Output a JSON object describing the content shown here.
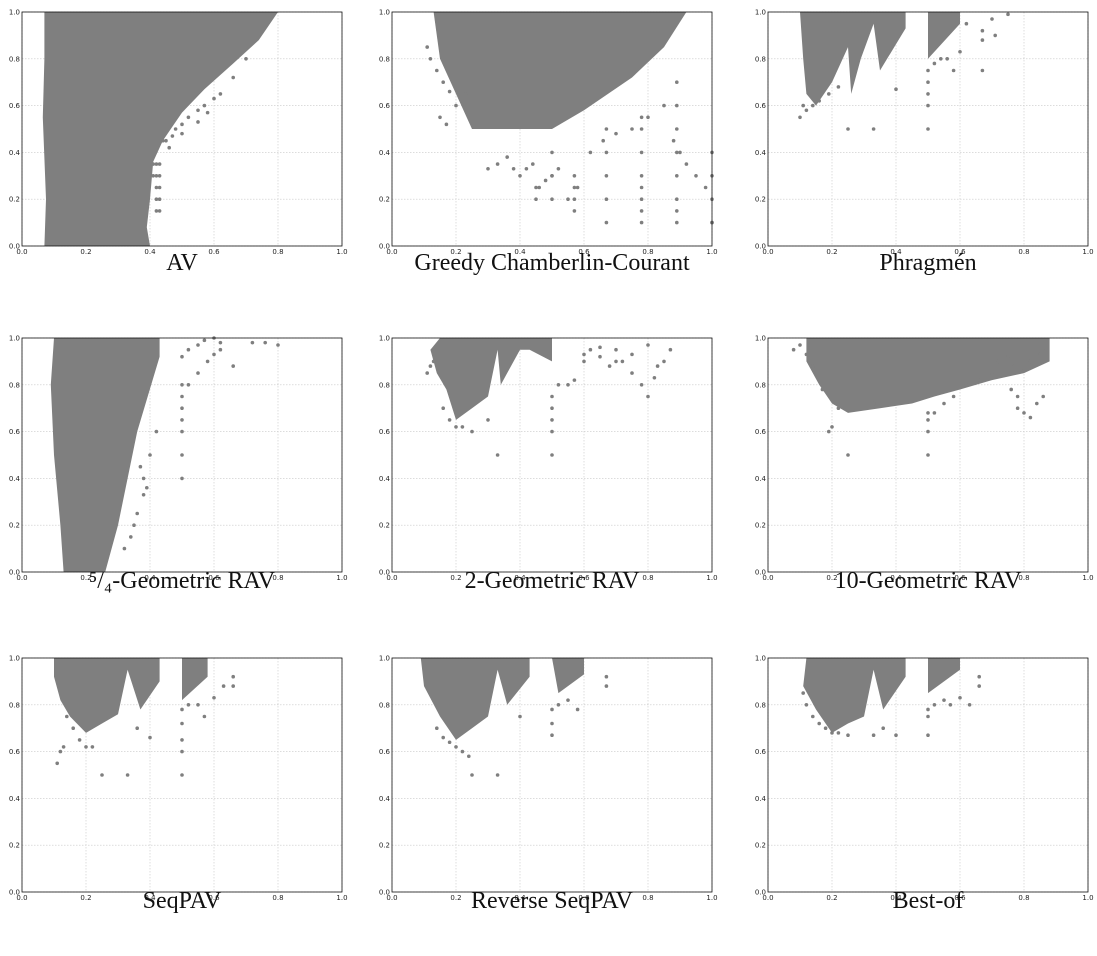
{
  "colors": {
    "marker": "#7f7f7f",
    "grid": "#c8c8c8",
    "axis": "#111111"
  },
  "tick_labels": [
    "0.0",
    "0.2",
    "0.4",
    "0.6",
    "0.8",
    "1.0"
  ],
  "chart_data": [
    {
      "type": "scatter",
      "caption": "AV",
      "xlim": [
        0,
        1
      ],
      "ylim": [
        0,
        1
      ],
      "grid": true,
      "mass": [
        [
          0.07,
          1.0
        ],
        [
          0.8,
          1.0
        ],
        [
          0.74,
          0.88
        ],
        [
          0.66,
          0.78
        ],
        [
          0.57,
          0.67
        ],
        [
          0.5,
          0.57
        ],
        [
          0.44,
          0.45
        ],
        [
          0.41,
          0.36
        ],
        [
          0.4,
          0.2
        ],
        [
          0.39,
          0.08
        ],
        [
          0.4,
          0.0
        ],
        [
          0.07,
          0.0
        ],
        [
          0.075,
          0.2
        ],
        [
          0.065,
          0.55
        ],
        [
          0.07,
          0.8
        ]
      ],
      "series": [
        {
          "x": [
            0.41,
            0.42,
            0.43,
            0.41,
            0.42,
            0.43,
            0.42,
            0.43,
            0.42,
            0.43,
            0.42,
            0.43,
            0.44,
            0.45,
            0.47,
            0.48,
            0.5,
            0.52,
            0.55,
            0.57,
            0.6,
            0.46,
            0.5,
            0.55,
            0.58,
            0.62,
            0.66,
            0.7
          ],
          "y": [
            0.35,
            0.35,
            0.35,
            0.3,
            0.3,
            0.3,
            0.25,
            0.25,
            0.2,
            0.2,
            0.15,
            0.15,
            0.45,
            0.45,
            0.47,
            0.5,
            0.52,
            0.55,
            0.58,
            0.6,
            0.63,
            0.42,
            0.48,
            0.53,
            0.57,
            0.65,
            0.72,
            0.8
          ]
        }
      ]
    },
    {
      "type": "scatter",
      "caption": "Greedy Chamberlin-Courant",
      "xlim": [
        0,
        1
      ],
      "ylim": [
        0,
        1
      ],
      "grid": true,
      "mass": [
        [
          0.13,
          1.0
        ],
        [
          0.92,
          1.0
        ],
        [
          0.85,
          0.85
        ],
        [
          0.75,
          0.72
        ],
        [
          0.6,
          0.58
        ],
        [
          0.5,
          0.5
        ],
        [
          0.25,
          0.5
        ],
        [
          0.2,
          0.65
        ],
        [
          0.15,
          0.8
        ]
      ],
      "series": [
        {
          "x": [
            0.11,
            0.12,
            0.14,
            0.16,
            0.18,
            0.15,
            0.17,
            0.2,
            0.23,
            0.3,
            0.33,
            0.36,
            0.38,
            0.4,
            0.42,
            0.44,
            0.46,
            0.48,
            0.5,
            0.52,
            0.55,
            0.58,
            0.62,
            0.66,
            0.7,
            0.75,
            0.8,
            0.85,
            0.88,
            0.9,
            0.92,
            0.95,
            0.98,
            1.0
          ],
          "y": [
            0.85,
            0.8,
            0.75,
            0.7,
            0.66,
            0.55,
            0.52,
            0.6,
            0.65,
            0.33,
            0.35,
            0.38,
            0.33,
            0.3,
            0.33,
            0.35,
            0.25,
            0.28,
            0.3,
            0.33,
            0.2,
            0.25,
            0.4,
            0.45,
            0.48,
            0.5,
            0.55,
            0.6,
            0.45,
            0.4,
            0.35,
            0.3,
            0.25,
            0.1
          ]
        },
        {
          "x": [
            0.78,
            0.78,
            0.78,
            0.78,
            0.78,
            0.78,
            0.78,
            0.78,
            0.89,
            0.89,
            0.89,
            0.89,
            0.89,
            0.89,
            0.89,
            0.89,
            1.0,
            1.0,
            1.0,
            1.0,
            0.57,
            0.57,
            0.57,
            0.57,
            0.5,
            0.5,
            0.5,
            0.45,
            0.45,
            0.67,
            0.67,
            0.67,
            0.67,
            0.67
          ],
          "y": [
            0.1,
            0.2,
            0.3,
            0.4,
            0.5,
            0.55,
            0.15,
            0.25,
            0.1,
            0.2,
            0.3,
            0.4,
            0.5,
            0.6,
            0.7,
            0.15,
            0.1,
            0.2,
            0.3,
            0.4,
            0.15,
            0.2,
            0.25,
            0.3,
            0.2,
            0.3,
            0.4,
            0.2,
            0.25,
            0.1,
            0.2,
            0.3,
            0.4,
            0.5
          ]
        }
      ]
    },
    {
      "type": "scatter",
      "caption": "Phragmén",
      "xlim": [
        0,
        1
      ],
      "ylim": [
        0,
        1
      ],
      "grid": true,
      "mass": [
        [
          0.1,
          1.0
        ],
        [
          0.6,
          1.0
        ],
        [
          0.6,
          0.95
        ],
        [
          0.5,
          0.8
        ],
        [
          0.5,
          1.0
        ],
        [
          0.43,
          1.0
        ],
        [
          0.43,
          0.93
        ],
        [
          0.35,
          0.75
        ],
        [
          0.33,
          0.95
        ],
        [
          0.29,
          0.8
        ],
        [
          0.26,
          0.65
        ],
        [
          0.25,
          0.85
        ],
        [
          0.2,
          0.7
        ],
        [
          0.15,
          0.6
        ],
        [
          0.12,
          0.65
        ],
        [
          0.11,
          0.8
        ]
      ],
      "series": [
        {
          "x": [
            0.1,
            0.11,
            0.12,
            0.14,
            0.16,
            0.19,
            0.22,
            0.25,
            0.33,
            0.4,
            0.5,
            0.5,
            0.5,
            0.5,
            0.5,
            0.52,
            0.54,
            0.56,
            0.58,
            0.6,
            0.67,
            0.67,
            0.67,
            0.71,
            0.75,
            0.7,
            0.62
          ],
          "y": [
            0.55,
            0.6,
            0.58,
            0.6,
            0.62,
            0.65,
            0.68,
            0.5,
            0.5,
            0.67,
            0.5,
            0.6,
            0.65,
            0.7,
            0.75,
            0.78,
            0.8,
            0.8,
            0.75,
            0.83,
            0.75,
            0.88,
            0.92,
            0.9,
            0.99,
            0.97,
            0.95
          ]
        }
      ]
    },
    {
      "type": "scatter",
      "caption": "⁵/₄-Geometric RAV",
      "xlim": [
        0,
        1
      ],
      "ylim": [
        0,
        1
      ],
      "grid": true,
      "mass": [
        [
          0.1,
          1.0
        ],
        [
          0.43,
          1.0
        ],
        [
          0.43,
          0.92
        ],
        [
          0.36,
          0.6
        ],
        [
          0.33,
          0.4
        ],
        [
          0.3,
          0.2
        ],
        [
          0.26,
          0.0
        ],
        [
          0.13,
          0.0
        ],
        [
          0.12,
          0.2
        ],
        [
          0.1,
          0.5
        ],
        [
          0.09,
          0.8
        ]
      ],
      "series": [
        {
          "x": [
            0.5,
            0.5,
            0.5,
            0.5,
            0.5,
            0.5,
            0.52,
            0.55,
            0.58,
            0.6,
            0.62,
            0.5,
            0.52,
            0.55,
            0.57,
            0.6,
            0.62,
            0.66,
            0.72,
            0.76,
            0.8,
            0.5,
            0.34,
            0.36,
            0.38,
            0.4,
            0.42,
            0.38,
            0.39,
            0.37,
            0.35,
            0.32
          ],
          "y": [
            0.6,
            0.65,
            0.7,
            0.75,
            0.8,
            0.4,
            0.8,
            0.85,
            0.9,
            0.93,
            0.98,
            0.92,
            0.95,
            0.97,
            0.99,
            1.0,
            0.95,
            0.88,
            0.98,
            0.98,
            0.97,
            0.5,
            0.15,
            0.25,
            0.4,
            0.5,
            0.6,
            0.33,
            0.36,
            0.45,
            0.2,
            0.1
          ]
        }
      ]
    },
    {
      "type": "scatter",
      "caption": "2-Geometric RAV",
      "xlim": [
        0,
        1
      ],
      "ylim": [
        0,
        1
      ],
      "grid": true,
      "mass": [
        [
          0.15,
          1.0
        ],
        [
          0.5,
          1.0
        ],
        [
          0.5,
          0.9
        ],
        [
          0.43,
          0.95
        ],
        [
          0.4,
          0.95
        ],
        [
          0.34,
          0.8
        ],
        [
          0.33,
          0.95
        ],
        [
          0.3,
          0.75
        ],
        [
          0.25,
          0.7
        ],
        [
          0.2,
          0.65
        ],
        [
          0.17,
          0.78
        ],
        [
          0.14,
          0.85
        ],
        [
          0.12,
          0.95
        ]
      ],
      "series": [
        {
          "x": [
            0.11,
            0.12,
            0.13,
            0.16,
            0.18,
            0.2,
            0.22,
            0.25,
            0.3,
            0.33,
            0.5,
            0.5,
            0.5,
            0.5,
            0.5,
            0.52,
            0.55,
            0.57,
            0.6,
            0.62,
            0.65,
            0.68,
            0.7,
            0.72,
            0.75,
            0.78,
            0.8,
            0.82,
            0.85,
            0.87,
            0.6,
            0.65,
            0.7,
            0.75,
            0.8,
            0.83
          ],
          "y": [
            0.85,
            0.88,
            0.9,
            0.7,
            0.65,
            0.62,
            0.62,
            0.6,
            0.65,
            0.5,
            0.5,
            0.6,
            0.65,
            0.7,
            0.75,
            0.8,
            0.8,
            0.82,
            0.9,
            0.95,
            0.92,
            0.88,
            0.95,
            0.9,
            0.85,
            0.8,
            0.75,
            0.83,
            0.9,
            0.95,
            0.93,
            0.96,
            0.9,
            0.93,
            0.97,
            0.88
          ]
        }
      ]
    },
    {
      "type": "scatter",
      "caption": "10-Geometric RAV",
      "xlim": [
        0,
        1
      ],
      "ylim": [
        0,
        1
      ],
      "grid": true,
      "mass": [
        [
          0.12,
          1.0
        ],
        [
          0.88,
          1.0
        ],
        [
          0.88,
          0.9
        ],
        [
          0.8,
          0.85
        ],
        [
          0.7,
          0.82
        ],
        [
          0.6,
          0.78
        ],
        [
          0.52,
          0.75
        ],
        [
          0.45,
          0.72
        ],
        [
          0.35,
          0.7
        ],
        [
          0.25,
          0.68
        ],
        [
          0.2,
          0.72
        ],
        [
          0.16,
          0.8
        ],
        [
          0.12,
          0.9
        ]
      ],
      "series": [
        {
          "x": [
            0.08,
            0.1,
            0.12,
            0.14,
            0.17,
            0.19,
            0.2,
            0.22,
            0.25,
            0.33,
            0.5,
            0.5,
            0.5,
            0.5,
            0.52,
            0.55,
            0.58,
            0.62,
            0.66,
            0.7,
            0.72,
            0.75,
            0.77,
            0.8,
            0.82,
            0.85,
            0.87,
            0.78,
            0.8,
            0.82,
            0.84,
            0.86,
            0.76,
            0.78
          ],
          "y": [
            0.95,
            0.97,
            0.93,
            0.88,
            0.78,
            0.6,
            0.62,
            0.7,
            0.5,
            0.72,
            0.5,
            0.6,
            0.65,
            0.68,
            0.68,
            0.72,
            0.75,
            0.8,
            0.82,
            0.85,
            0.9,
            0.92,
            0.88,
            0.86,
            0.9,
            0.93,
            0.95,
            0.7,
            0.68,
            0.66,
            0.72,
            0.75,
            0.78,
            0.75
          ]
        }
      ]
    },
    {
      "type": "scatter",
      "caption": "SeqPAV",
      "xlim": [
        0,
        1
      ],
      "ylim": [
        0,
        1
      ],
      "grid": true,
      "mass": [
        [
          0.1,
          1.0
        ],
        [
          0.58,
          1.0
        ],
        [
          0.58,
          0.92
        ],
        [
          0.5,
          0.82
        ],
        [
          0.5,
          1.0
        ],
        [
          0.43,
          1.0
        ],
        [
          0.43,
          0.9
        ],
        [
          0.37,
          0.78
        ],
        [
          0.33,
          0.95
        ],
        [
          0.3,
          0.76
        ],
        [
          0.25,
          0.72
        ],
        [
          0.2,
          0.68
        ],
        [
          0.15,
          0.75
        ],
        [
          0.12,
          0.82
        ],
        [
          0.1,
          0.92
        ]
      ],
      "series": [
        {
          "x": [
            0.11,
            0.12,
            0.13,
            0.14,
            0.16,
            0.18,
            0.2,
            0.22,
            0.25,
            0.33,
            0.5,
            0.5,
            0.5,
            0.5,
            0.5,
            0.52,
            0.55,
            0.57,
            0.6,
            0.63,
            0.66,
            0.66,
            0.4,
            0.36
          ],
          "y": [
            0.55,
            0.6,
            0.62,
            0.75,
            0.7,
            0.65,
            0.62,
            0.62,
            0.5,
            0.5,
            0.5,
            0.6,
            0.65,
            0.72,
            0.78,
            0.8,
            0.8,
            0.75,
            0.83,
            0.88,
            0.92,
            0.88,
            0.66,
            0.7
          ]
        }
      ]
    },
    {
      "type": "scatter",
      "caption": "Reverse SeqPAV",
      "xlim": [
        0,
        1
      ],
      "ylim": [
        0,
        1
      ],
      "grid": true,
      "mass": [
        [
          0.09,
          1.0
        ],
        [
          0.6,
          1.0
        ],
        [
          0.6,
          0.93
        ],
        [
          0.52,
          0.85
        ],
        [
          0.5,
          1.0
        ],
        [
          0.43,
          1.0
        ],
        [
          0.43,
          0.92
        ],
        [
          0.36,
          0.8
        ],
        [
          0.33,
          0.95
        ],
        [
          0.3,
          0.75
        ],
        [
          0.25,
          0.7
        ],
        [
          0.2,
          0.65
        ],
        [
          0.15,
          0.75
        ],
        [
          0.1,
          0.88
        ]
      ],
      "series": [
        {
          "x": [
            0.14,
            0.16,
            0.18,
            0.2,
            0.22,
            0.24,
            0.25,
            0.33,
            0.5,
            0.5,
            0.5,
            0.52,
            0.55,
            0.58,
            0.67,
            0.67,
            0.4
          ],
          "y": [
            0.7,
            0.66,
            0.64,
            0.62,
            0.6,
            0.58,
            0.5,
            0.5,
            0.67,
            0.72,
            0.78,
            0.8,
            0.82,
            0.78,
            0.88,
            0.92,
            0.75
          ]
        }
      ]
    },
    {
      "type": "scatter",
      "caption": "Best-of",
      "xlim": [
        0,
        1
      ],
      "ylim": [
        0,
        1
      ],
      "grid": true,
      "mass": [
        [
          0.12,
          1.0
        ],
        [
          0.6,
          1.0
        ],
        [
          0.6,
          0.95
        ],
        [
          0.5,
          0.85
        ],
        [
          0.5,
          1.0
        ],
        [
          0.43,
          1.0
        ],
        [
          0.43,
          0.92
        ],
        [
          0.36,
          0.78
        ],
        [
          0.33,
          0.95
        ],
        [
          0.3,
          0.75
        ],
        [
          0.25,
          0.72
        ],
        [
          0.2,
          0.68
        ],
        [
          0.15,
          0.78
        ],
        [
          0.11,
          0.88
        ]
      ],
      "series": [
        {
          "x": [
            0.11,
            0.12,
            0.14,
            0.16,
            0.18,
            0.2,
            0.22,
            0.25,
            0.33,
            0.36,
            0.4,
            0.5,
            0.5,
            0.5,
            0.52,
            0.55,
            0.57,
            0.6,
            0.63,
            0.66,
            0.66
          ],
          "y": [
            0.85,
            0.8,
            0.75,
            0.72,
            0.7,
            0.68,
            0.68,
            0.67,
            0.67,
            0.7,
            0.67,
            0.67,
            0.75,
            0.78,
            0.8,
            0.82,
            0.8,
            0.83,
            0.8,
            0.88,
            0.92
          ]
        }
      ]
    }
  ]
}
